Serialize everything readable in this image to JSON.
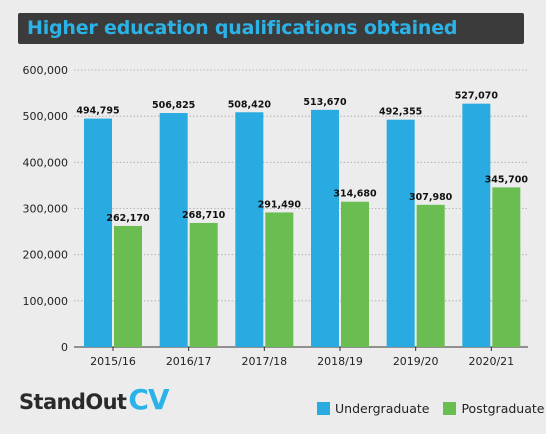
{
  "chart_data": {
    "type": "bar",
    "title": "Higher education qualifications obtained",
    "categories": [
      "2015/16",
      "2016/17",
      "2017/18",
      "2018/19",
      "2019/20",
      "2020/21"
    ],
    "series": [
      {
        "name": "Undergraduate",
        "color": "#29abe2",
        "values": [
          494795,
          506825,
          508420,
          513670,
          492355,
          527070
        ],
        "labels": [
          "494,795",
          "506,825",
          "508,420",
          "513,670",
          "492,355",
          "527,070"
        ]
      },
      {
        "name": "Postgraduate",
        "color": "#6abd51",
        "values": [
          262170,
          268710,
          291490,
          314680,
          307980,
          345700
        ],
        "labels": [
          "262,170",
          "268,710",
          "291,490",
          "314,680",
          "307,980",
          "345,700"
        ]
      }
    ],
    "ylim": [
      0,
      600000
    ],
    "yticks": [
      0,
      100000,
      200000,
      300000,
      400000,
      500000,
      600000
    ],
    "ytick_labels": [
      "0",
      "100,000",
      "200,000",
      "300,000",
      "400,000",
      "500,000",
      "600,000"
    ],
    "grid": true,
    "legend_position": "bottom-right"
  },
  "branding": {
    "logo_main": "StandOut",
    "logo_accent": "CV"
  }
}
